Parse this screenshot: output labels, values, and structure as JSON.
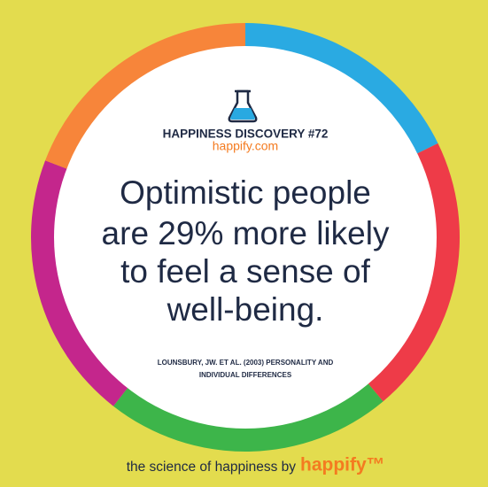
{
  "header": {
    "title": "HAPPINESS DISCOVERY #72",
    "site": "happify.com"
  },
  "headline": [
    "Optimistic people",
    "are 29% more likely",
    "to feel a sense of",
    "well-being."
  ],
  "citation": [
    "LOUNSBURY, JW. ET AL. (2003) PERSONALITY AND",
    "INDIVIDUAL DIFFERENCES"
  ],
  "footer": {
    "tagline": "the science of happiness by",
    "brand": "happify™"
  }
}
